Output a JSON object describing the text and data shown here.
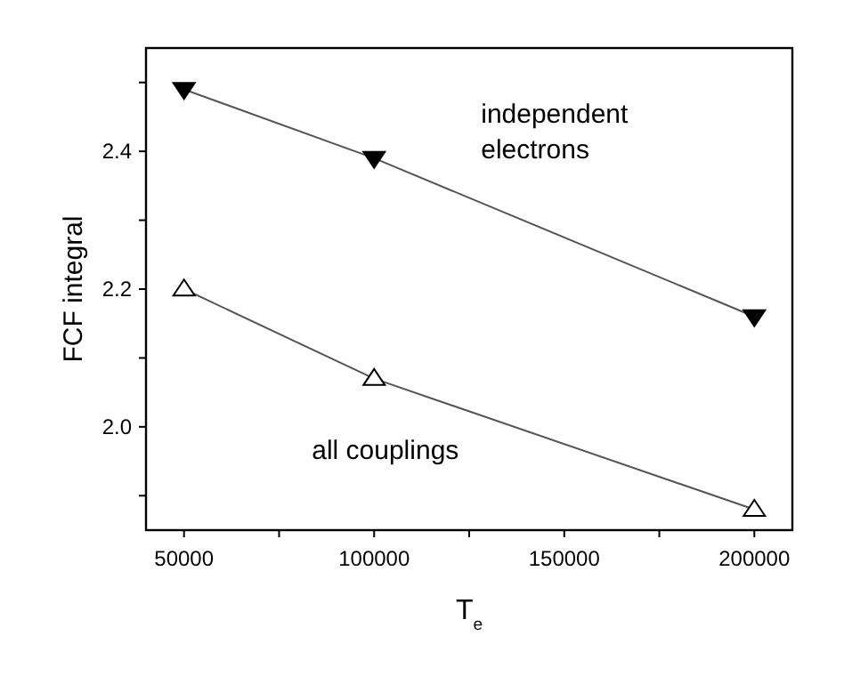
{
  "chart_data": {
    "type": "line",
    "xlabel": "T$_{e}$",
    "ylabel": "FCF integral",
    "x": [
      50000,
      100000,
      200000
    ],
    "series": [
      {
        "name": "independent electrons",
        "color": "#000000",
        "marker": "triangle-down",
        "values": [
          2.49,
          2.39,
          2.16
        ]
      },
      {
        "name": "all couplings",
        "color": "#000000",
        "marker": "triangle-open",
        "values": [
          2.2,
          2.07,
          1.88
        ]
      }
    ],
    "xlim": [
      40000,
      210000
    ],
    "xticks": [
      50000,
      {
        "value": 75000,
        "label": null
      },
      100000,
      {
        "value": 125000,
        "label": null
      },
      150000,
      {
        "value": 175000,
        "label": null
      },
      200000
    ],
    "ylim": [
      1.85,
      2.55
    ],
    "yticks": [
      {
        "value": 1.9,
        "label": null
      },
      {
        "value": 2.0,
        "label": "2.0"
      },
      {
        "value": 2.1,
        "label": null
      },
      2.2,
      {
        "value": 2.3,
        "label": null
      },
      2.4,
      {
        "value": 2.5,
        "label": null
      }
    ],
    "line_style": "solid"
  }
}
